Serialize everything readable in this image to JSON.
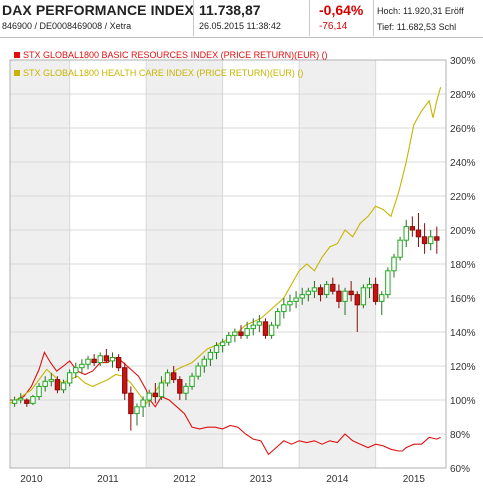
{
  "header": {
    "index_name": "DAX PERFORMANCE INDEX",
    "identifiers": "846900 / DE0008469008 / Xetra",
    "last_price": "11.738,87",
    "datetime": "26.05.2015 11:38:42",
    "change_pct": "-0,64%",
    "change_abs": "-76,14",
    "high_label": "Hoch:",
    "high_value": "11.920,31",
    "open_label": "Eröff",
    "low_label": "Tief:",
    "low_value": "11.682,53",
    "close_label": "Schl"
  },
  "colors": {
    "candle_up": "#22aa22",
    "candle_down": "#cc1111",
    "basic_resources": "#e01010",
    "health_care": "#c8b400",
    "shade": "#efefef",
    "grid": "#d9d9d9"
  },
  "chart_data": {
    "type": "line",
    "title": "",
    "xlabel": "",
    "ylabel": "",
    "x_ticks": [
      "2010",
      "2011",
      "2012",
      "2013",
      "2014",
      "2015"
    ],
    "y_ticks": [
      "60%",
      "80%",
      "100%",
      "120%",
      "140%",
      "160%",
      "180%",
      "200%",
      "220%",
      "240%",
      "260%",
      "280%",
      "300%"
    ],
    "ylim": [
      60,
      300
    ],
    "xlim": [
      2009.72,
      2015.42
    ],
    "grid": true,
    "legend_position": "top-left",
    "series": [
      {
        "name": "STX GLOBAL1800 BASIC RESOURCES INDEX (PRICE RETURN)(EUR) ()",
        "role": "comparison-line",
        "color": "#e01010",
        "x": [
          2009.72,
          2009.8,
          2009.9,
          2010,
          2010.1,
          2010.17,
          2010.25,
          2010.33,
          2010.42,
          2010.5,
          2010.6,
          2010.7,
          2010.8,
          2010.9,
          2011,
          2011.05,
          2011.12,
          2011.2,
          2011.3,
          2011.4,
          2011.5,
          2011.55,
          2011.62,
          2011.7,
          2011.8,
          2011.9,
          2012,
          2012.05,
          2012.1,
          2012.2,
          2012.3,
          2012.4,
          2012.5,
          2012.6,
          2012.7,
          2012.8,
          2012.9,
          2013,
          2013.05,
          2013.1,
          2013.2,
          2013.3,
          2013.4,
          2013.5,
          2013.6,
          2013.7,
          2013.8,
          2013.9,
          2014,
          2014.1,
          2014.2,
          2014.3,
          2014.4,
          2014.5,
          2014.6,
          2014.7,
          2014.8,
          2014.85,
          2014.9,
          2015,
          2015.1,
          2015.2,
          2015.3,
          2015.35
        ],
        "y": [
          100,
          100,
          102,
          108,
          118,
          128,
          122,
          117,
          120,
          123,
          117,
          115,
          117,
          122,
          122,
          124,
          125,
          122,
          118,
          114,
          106,
          100,
          96,
          102,
          100,
          96,
          92,
          88,
          84,
          83,
          84,
          84,
          83,
          85,
          84,
          80,
          77,
          76,
          72,
          68,
          72,
          76,
          74,
          76,
          75,
          76,
          74,
          76,
          75,
          80,
          76,
          74,
          72,
          74,
          73,
          71,
          70,
          70,
          72,
          74,
          74,
          78,
          77,
          78
        ]
      },
      {
        "name": "STX GLOBAL1800 HEALTH CARE INDEX (PRICE RETURN)(EUR) ()",
        "role": "comparison-line",
        "color": "#c8b400",
        "x": [
          2009.72,
          2009.8,
          2009.9,
          2010,
          2010.1,
          2010.2,
          2010.3,
          2010.4,
          2010.5,
          2010.6,
          2010.7,
          2010.8,
          2010.9,
          2011,
          2011.1,
          2011.2,
          2011.3,
          2011.4,
          2011.5,
          2011.6,
          2011.7,
          2011.8,
          2011.9,
          2012,
          2012.1,
          2012.2,
          2012.3,
          2012.4,
          2012.5,
          2012.6,
          2012.7,
          2012.8,
          2012.9,
          2013,
          2013.1,
          2013.2,
          2013.3,
          2013.4,
          2013.5,
          2013.6,
          2013.7,
          2013.8,
          2013.9,
          2014,
          2014.1,
          2014.2,
          2014.3,
          2014.4,
          2014.5,
          2014.6,
          2014.7,
          2014.8,
          2014.9,
          2015,
          2015.1,
          2015.2,
          2015.25,
          2015.3,
          2015.35
        ],
        "y": [
          98,
          100,
          103,
          106,
          112,
          118,
          114,
          110,
          112,
          114,
          110,
          108,
          110,
          112,
          115,
          114,
          110,
          104,
          98,
          104,
          110,
          114,
          118,
          120,
          122,
          126,
          130,
          132,
          134,
          137,
          140,
          144,
          146,
          148,
          152,
          156,
          160,
          168,
          176,
          180,
          176,
          184,
          190,
          192,
          200,
          196,
          204,
          208,
          214,
          212,
          208,
          222,
          240,
          262,
          270,
          276,
          266,
          276,
          284
        ]
      },
      {
        "name": "DAX PERFORMANCE INDEX",
        "role": "candles",
        "ohlc": [
          [
            2009.78,
            98,
            102,
            96,
            100
          ],
          [
            2009.86,
            100,
            104,
            98,
            101
          ],
          [
            2009.94,
            100,
            101,
            96,
            98
          ],
          [
            2010.02,
            98,
            103,
            97,
            102
          ],
          [
            2010.1,
            102,
            110,
            100,
            108
          ],
          [
            2010.18,
            108,
            114,
            105,
            111
          ],
          [
            2010.26,
            111,
            116,
            108,
            112
          ],
          [
            2010.34,
            112,
            114,
            104,
            106
          ],
          [
            2010.42,
            106,
            112,
            104,
            110
          ],
          [
            2010.5,
            110,
            118,
            108,
            116
          ],
          [
            2010.58,
            116,
            122,
            113,
            119
          ],
          [
            2010.66,
            119,
            124,
            116,
            121
          ],
          [
            2010.74,
            121,
            126,
            118,
            124
          ],
          [
            2010.82,
            124,
            127,
            120,
            122
          ],
          [
            2010.9,
            122,
            128,
            120,
            126
          ],
          [
            2010.98,
            126,
            130,
            122,
            123
          ],
          [
            2011.06,
            123,
            128,
            119,
            125
          ],
          [
            2011.14,
            125,
            127,
            117,
            119
          ],
          [
            2011.22,
            119,
            122,
            100,
            104
          ],
          [
            2011.3,
            104,
            108,
            82,
            92
          ],
          [
            2011.38,
            92,
            98,
            85,
            96
          ],
          [
            2011.46,
            96,
            102,
            90,
            100
          ],
          [
            2011.54,
            100,
            106,
            96,
            104
          ],
          [
            2011.62,
            104,
            110,
            98,
            102
          ],
          [
            2011.7,
            102,
            114,
            100,
            110
          ],
          [
            2011.78,
            110,
            118,
            108,
            116
          ],
          [
            2011.86,
            116,
            120,
            110,
            112
          ],
          [
            2011.94,
            112,
            114,
            100,
            104
          ],
          [
            2012.02,
            104,
            110,
            100,
            108
          ],
          [
            2012.1,
            108,
            116,
            106,
            114
          ],
          [
            2012.18,
            114,
            122,
            112,
            120
          ],
          [
            2012.26,
            120,
            126,
            116,
            124
          ],
          [
            2012.34,
            124,
            130,
            120,
            128
          ],
          [
            2012.42,
            128,
            134,
            124,
            132
          ],
          [
            2012.5,
            132,
            136,
            128,
            134
          ],
          [
            2012.58,
            134,
            140,
            132,
            138
          ],
          [
            2012.66,
            138,
            142,
            134,
            140
          ],
          [
            2012.74,
            140,
            144,
            136,
            138
          ],
          [
            2012.82,
            138,
            146,
            136,
            142
          ],
          [
            2012.9,
            142,
            148,
            138,
            144
          ],
          [
            2012.98,
            144,
            150,
            140,
            146
          ],
          [
            2013.06,
            146,
            148,
            136,
            138
          ],
          [
            2013.14,
            138,
            146,
            136,
            144
          ],
          [
            2013.22,
            144,
            154,
            142,
            152
          ],
          [
            2013.3,
            152,
            160,
            148,
            156
          ],
          [
            2013.38,
            156,
            162,
            152,
            158
          ],
          [
            2013.46,
            158,
            164,
            154,
            160
          ],
          [
            2013.54,
            160,
            166,
            156,
            162
          ],
          [
            2013.62,
            162,
            166,
            158,
            164
          ],
          [
            2013.7,
            164,
            170,
            160,
            166
          ],
          [
            2013.78,
            166,
            168,
            158,
            162
          ],
          [
            2013.86,
            162,
            170,
            160,
            168
          ],
          [
            2013.94,
            168,
            172,
            162,
            164
          ],
          [
            2014.02,
            164,
            168,
            154,
            158
          ],
          [
            2014.1,
            158,
            166,
            150,
            164
          ],
          [
            2014.18,
            164,
            170,
            158,
            162
          ],
          [
            2014.26,
            162,
            164,
            140,
            156
          ],
          [
            2014.34,
            156,
            168,
            154,
            166
          ],
          [
            2014.42,
            166,
            172,
            160,
            168
          ],
          [
            2014.5,
            168,
            172,
            156,
            158
          ],
          [
            2014.58,
            158,
            164,
            150,
            162
          ],
          [
            2014.66,
            162,
            178,
            160,
            176
          ],
          [
            2014.74,
            176,
            186,
            172,
            184
          ],
          [
            2014.82,
            184,
            196,
            182,
            194
          ],
          [
            2014.9,
            194,
            206,
            190,
            202
          ],
          [
            2014.98,
            202,
            208,
            196,
            200
          ],
          [
            2015.06,
            200,
            210,
            190,
            196
          ],
          [
            2015.14,
            196,
            204,
            186,
            192
          ],
          [
            2015.22,
            192,
            200,
            188,
            196
          ],
          [
            2015.3,
            196,
            202,
            186,
            194
          ]
        ]
      }
    ]
  }
}
